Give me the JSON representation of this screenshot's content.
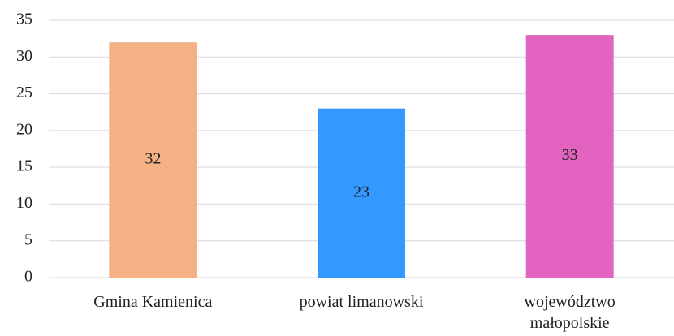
{
  "chart_data": {
    "type": "bar",
    "categories": [
      "Gmina Kamienica",
      "powiat limanowski",
      "województwo małopolskie"
    ],
    "values": [
      32,
      23,
      33
    ],
    "colors": [
      "#f4b183",
      "#3399ff",
      "#e264c0"
    ],
    "ylim": [
      0,
      35
    ],
    "yticks": [
      0,
      5,
      10,
      15,
      20,
      25,
      30,
      35
    ],
    "grid": true
  }
}
